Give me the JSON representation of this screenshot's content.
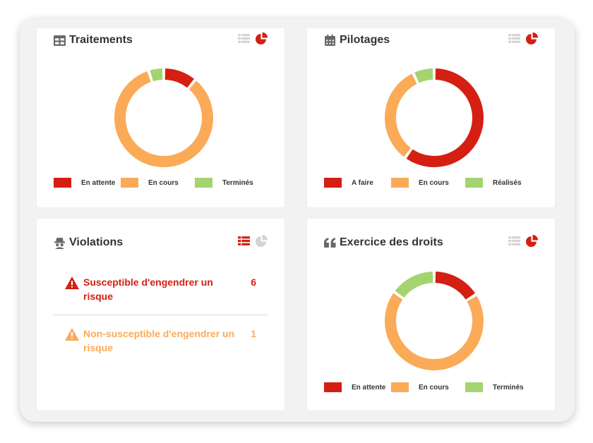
{
  "colors": {
    "red": "#d41f12",
    "orange": "#fbaa58",
    "green": "#a4d470",
    "text": "#333333",
    "muted": "#d4d4d4"
  },
  "traitements": {
    "title": "Traitements",
    "icon": "table-icon",
    "active_view": "chart",
    "legend": [
      "En attente",
      "En cours",
      "Terminés"
    ],
    "chart_data": {
      "type": "pie",
      "categories": [
        "En attente",
        "En cours",
        "Terminés"
      ],
      "values": [
        11,
        84,
        5
      ]
    }
  },
  "pilotages": {
    "title": "Pilotages",
    "icon": "calendar-icon",
    "active_view": "chart",
    "legend": [
      "A faire",
      "En cours",
      "Réalisés"
    ],
    "chart_data": {
      "type": "pie",
      "categories": [
        "A faire",
        "En cours",
        "Réalisés"
      ],
      "values": [
        60,
        33,
        7
      ]
    }
  },
  "violations": {
    "title": "Violations",
    "icon": "spy-icon",
    "active_view": "table",
    "items": [
      {
        "label": "Susceptible d'engendrer un risque",
        "count": "6",
        "level": "red",
        "icon": "warning-icon"
      },
      {
        "label": "Non-susceptible d'engendrer un risque",
        "count": "1",
        "level": "orange",
        "icon": "warning-icon"
      }
    ]
  },
  "droits": {
    "title": "Exercice des droits",
    "icon": "quote-icon",
    "active_view": "chart",
    "legend": [
      "En attente",
      "En cours",
      "Terminés"
    ],
    "chart_data": {
      "type": "pie",
      "categories": [
        "En attente",
        "En cours",
        "Terminés"
      ],
      "values": [
        16,
        69,
        15
      ]
    }
  }
}
